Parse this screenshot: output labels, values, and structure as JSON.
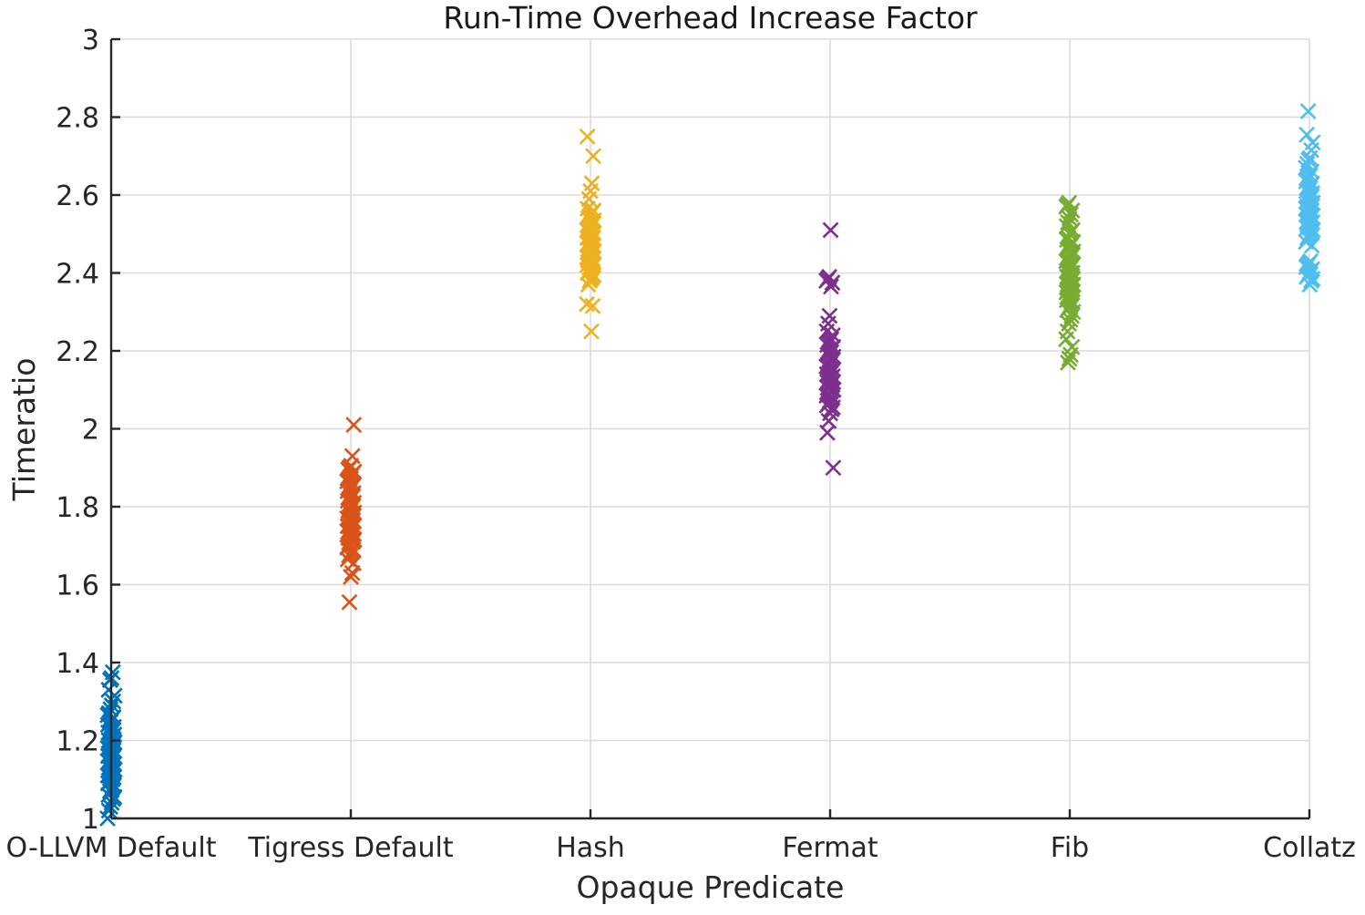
{
  "chart_data": {
    "type": "scatter",
    "marker": "x",
    "title": "Run-Time Overhead Increase Factor",
    "xlabel": "Opaque Predicate",
    "ylabel": "Timeratio",
    "ylim": [
      1,
      3
    ],
    "grid": true,
    "legend": "none",
    "ytick_labels": [
      "1",
      "1.2",
      "1.4",
      "1.6",
      "1.8",
      "2",
      "2.2",
      "2.4",
      "2.6",
      "2.8",
      "3"
    ],
    "yticks": [
      1,
      1.2,
      1.4,
      1.6,
      1.8,
      2,
      2.2,
      2.4,
      2.6,
      2.8,
      3
    ],
    "categories": [
      "O-LLVM Default",
      "Tigress Default",
      "Hash",
      "Fermat",
      "Fib",
      "Collatz"
    ],
    "series": [
      {
        "name": "O-LLVM Default",
        "color": "#0072BD",
        "values": [
          1.0,
          1.02,
          1.03,
          1.04,
          1.05,
          1.055,
          1.06,
          1.07,
          1.075,
          1.08,
          1.085,
          1.09,
          1.095,
          1.1,
          1.1,
          1.105,
          1.11,
          1.11,
          1.115,
          1.12,
          1.12,
          1.125,
          1.13,
          1.13,
          1.135,
          1.14,
          1.14,
          1.145,
          1.15,
          1.15,
          1.155,
          1.16,
          1.16,
          1.165,
          1.17,
          1.17,
          1.175,
          1.18,
          1.18,
          1.185,
          1.19,
          1.19,
          1.195,
          1.2,
          1.2,
          1.205,
          1.21,
          1.215,
          1.22,
          1.22,
          1.225,
          1.23,
          1.235,
          1.24,
          1.245,
          1.25,
          1.255,
          1.26,
          1.265,
          1.27,
          1.28,
          1.29,
          1.3,
          1.315,
          1.33,
          1.355,
          1.36,
          1.375
        ]
      },
      {
        "name": "Tigress Default",
        "color": "#D95319",
        "values": [
          1.555,
          1.62,
          1.63,
          1.655,
          1.665,
          1.675,
          1.68,
          1.685,
          1.69,
          1.695,
          1.7,
          1.705,
          1.71,
          1.71,
          1.715,
          1.72,
          1.72,
          1.725,
          1.73,
          1.73,
          1.735,
          1.74,
          1.74,
          1.745,
          1.75,
          1.75,
          1.755,
          1.76,
          1.76,
          1.765,
          1.77,
          1.77,
          1.775,
          1.78,
          1.78,
          1.785,
          1.79,
          1.795,
          1.8,
          1.805,
          1.81,
          1.815,
          1.82,
          1.825,
          1.83,
          1.835,
          1.84,
          1.845,
          1.85,
          1.855,
          1.86,
          1.865,
          1.87,
          1.875,
          1.88,
          1.885,
          1.89,
          1.895,
          1.9,
          1.905,
          1.93,
          2.01
        ]
      },
      {
        "name": "Hash",
        "color": "#EDB120",
        "values": [
          2.25,
          2.315,
          2.32,
          2.37,
          2.38,
          2.385,
          2.39,
          2.395,
          2.4,
          2.405,
          2.41,
          2.415,
          2.42,
          2.42,
          2.425,
          2.43,
          2.43,
          2.435,
          2.44,
          2.44,
          2.445,
          2.45,
          2.45,
          2.455,
          2.46,
          2.46,
          2.465,
          2.47,
          2.47,
          2.475,
          2.48,
          2.48,
          2.485,
          2.49,
          2.49,
          2.495,
          2.5,
          2.5,
          2.505,
          2.51,
          2.515,
          2.52,
          2.525,
          2.53,
          2.535,
          2.54,
          2.545,
          2.55,
          2.555,
          2.56,
          2.565,
          2.59,
          2.61,
          2.63,
          2.7,
          2.75
        ]
      },
      {
        "name": "Fermat",
        "color": "#7E2F8E",
        "values": [
          1.9,
          1.99,
          2.02,
          2.04,
          2.05,
          2.055,
          2.06,
          2.065,
          2.07,
          2.075,
          2.08,
          2.085,
          2.09,
          2.09,
          2.095,
          2.1,
          2.1,
          2.105,
          2.11,
          2.11,
          2.115,
          2.12,
          2.12,
          2.125,
          2.13,
          2.13,
          2.135,
          2.14,
          2.14,
          2.145,
          2.15,
          2.155,
          2.16,
          2.165,
          2.17,
          2.175,
          2.18,
          2.185,
          2.19,
          2.195,
          2.2,
          2.205,
          2.21,
          2.215,
          2.22,
          2.225,
          2.23,
          2.24,
          2.25,
          2.27,
          2.29,
          2.365,
          2.375,
          2.38,
          2.385,
          2.39,
          2.51
        ]
      },
      {
        "name": "Fib",
        "color": "#77AC30",
        "values": [
          2.17,
          2.18,
          2.19,
          2.21,
          2.23,
          2.25,
          2.27,
          2.28,
          2.29,
          2.3,
          2.305,
          2.31,
          2.315,
          2.32,
          2.325,
          2.33,
          2.335,
          2.34,
          2.345,
          2.35,
          2.35,
          2.355,
          2.36,
          2.36,
          2.365,
          2.37,
          2.37,
          2.375,
          2.38,
          2.38,
          2.385,
          2.39,
          2.39,
          2.395,
          2.4,
          2.4,
          2.405,
          2.41,
          2.415,
          2.42,
          2.425,
          2.43,
          2.435,
          2.44,
          2.445,
          2.45,
          2.455,
          2.46,
          2.465,
          2.47,
          2.475,
          2.48,
          2.485,
          2.49,
          2.5,
          2.505,
          2.51,
          2.52,
          2.53,
          2.54,
          2.55,
          2.56,
          2.57,
          2.575,
          2.58
        ]
      },
      {
        "name": "Collatz",
        "color": "#4DBEEE",
        "values": [
          2.37,
          2.38,
          2.385,
          2.39,
          2.395,
          2.4,
          2.405,
          2.41,
          2.415,
          2.42,
          2.425,
          2.43,
          2.47,
          2.48,
          2.49,
          2.495,
          2.5,
          2.505,
          2.51,
          2.515,
          2.52,
          2.52,
          2.525,
          2.53,
          2.53,
          2.535,
          2.54,
          2.54,
          2.545,
          2.55,
          2.55,
          2.555,
          2.56,
          2.56,
          2.565,
          2.57,
          2.57,
          2.575,
          2.58,
          2.58,
          2.585,
          2.59,
          2.595,
          2.6,
          2.605,
          2.61,
          2.615,
          2.62,
          2.625,
          2.63,
          2.635,
          2.64,
          2.645,
          2.65,
          2.66,
          2.67,
          2.68,
          2.69,
          2.695,
          2.715,
          2.735,
          2.755,
          2.815
        ]
      }
    ],
    "style": {
      "grid_color": "#DBDBDB",
      "spine_color": "#262626",
      "background": "#FFFFFF"
    }
  }
}
